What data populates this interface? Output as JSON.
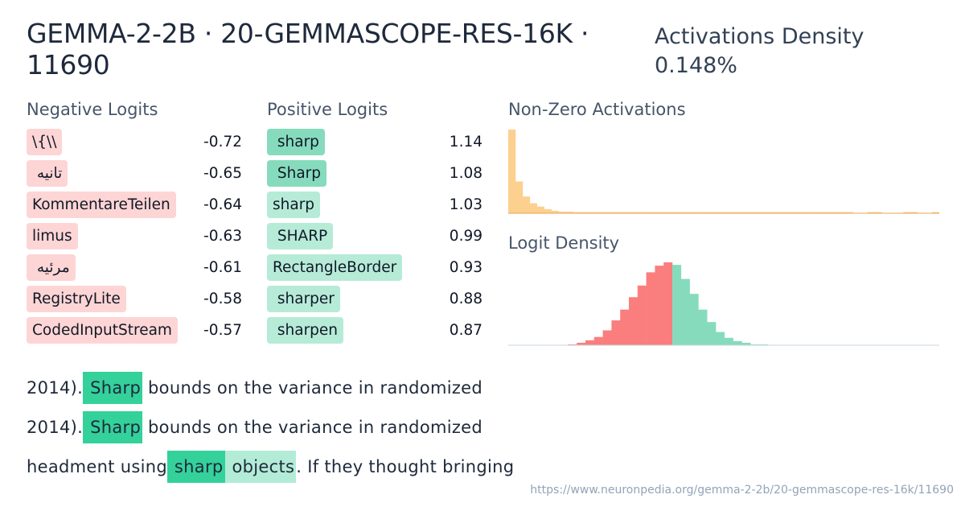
{
  "header": {
    "title": "GEMMA-2-2B · 20-GEMMASCOPE-RES-16K · 11690",
    "density_label": "Activations Density",
    "density_value": "0.148%"
  },
  "negative_logits": {
    "heading": "Negative Logits",
    "items": [
      {
        "token": "\\{\\\\",
        "value": "-0.72"
      },
      {
        "token": " تانيه",
        "value": "-0.65"
      },
      {
        "token": "KommentareTeilen",
        "value": "-0.64"
      },
      {
        "token": "limus",
        "value": "-0.63"
      },
      {
        "token": " مرئيه",
        "value": "-0.61"
      },
      {
        "token": "RegistryLite",
        "value": "-0.58"
      },
      {
        "token": "CodedInputStream",
        "value": "-0.57"
      }
    ]
  },
  "positive_logits": {
    "heading": "Positive Logits",
    "items": [
      {
        "token": " sharp",
        "value": "1.14",
        "strength": "strong"
      },
      {
        "token": " Sharp",
        "value": "1.08",
        "strength": "strong"
      },
      {
        "token": "sharp",
        "value": "1.03",
        "strength": "light"
      },
      {
        "token": " SHARP",
        "value": "0.99",
        "strength": "light"
      },
      {
        "token": "RectangleBorder",
        "value": "0.93",
        "strength": "light"
      },
      {
        "token": " sharper",
        "value": "0.88",
        "strength": "light"
      },
      {
        "token": " sharpen",
        "value": "0.87",
        "strength": "light"
      }
    ]
  },
  "nonzero_activations": {
    "heading": "Non-Zero Activations",
    "color": "#fcd08f",
    "stroke_color": "#e8a357",
    "relative_counts": [
      1.0,
      0.38,
      0.2,
      0.12,
      0.08,
      0.05,
      0.03,
      0.02,
      0.02,
      0.015,
      0.01,
      0.01,
      0.01,
      0.01,
      0.01,
      0.01,
      0.01,
      0.01,
      0.01,
      0.01,
      0.01,
      0.01,
      0.01,
      0.01,
      0.01,
      0.01,
      0.01,
      0.01,
      0.01,
      0.01,
      0.01,
      0.01,
      0.01,
      0.01,
      0.01,
      0.01,
      0.01,
      0.01,
      0.01,
      0.01,
      0.01,
      0.01,
      0.01,
      0.01,
      0.01,
      0.01,
      0.01,
      0.01,
      0,
      0,
      0.01,
      0.01,
      0,
      0,
      0,
      0.01,
      0.01,
      0,
      0,
      0.01
    ]
  },
  "logit_density": {
    "heading": "Logit Density",
    "negative_color": "#fa7e7e",
    "positive_color": "#86dbbd",
    "negative_counts": [
      0,
      0,
      0,
      0,
      0,
      0,
      0,
      0,
      0,
      0.005,
      0,
      0.01,
      0.03,
      0.06,
      0.1,
      0.18,
      0.3,
      0.43,
      0.58,
      0.72,
      0.88,
      0.96,
      1.0
    ],
    "positive_counts": [
      0.97,
      0.8,
      0.62,
      0.43,
      0.28,
      0.16,
      0.09,
      0.05,
      0.03,
      0.01,
      0.01,
      0.005
    ]
  },
  "examples": [
    [
      {
        "text": "2014).",
        "hl": "none"
      },
      {
        "text": " Sharp",
        "hl": "strong"
      },
      {
        "text": " bounds on the variance in randomized",
        "hl": "none"
      }
    ],
    [
      {
        "text": "2014).",
        "hl": "none"
      },
      {
        "text": " Sharp",
        "hl": "strong"
      },
      {
        "text": " bounds on the variance in randomized",
        "hl": "none"
      }
    ],
    [
      {
        "text": "headment using",
        "hl": "none"
      },
      {
        "text": " sharp",
        "hl": "strong"
      },
      {
        "text": " objects",
        "hl": "light"
      },
      {
        "text": ". If they thought bringing",
        "hl": "none"
      }
    ]
  ],
  "footer": {
    "url": "https://www.neuronpedia.org/gemma-2-2b/20-gemmascope-res-16k/11690"
  }
}
